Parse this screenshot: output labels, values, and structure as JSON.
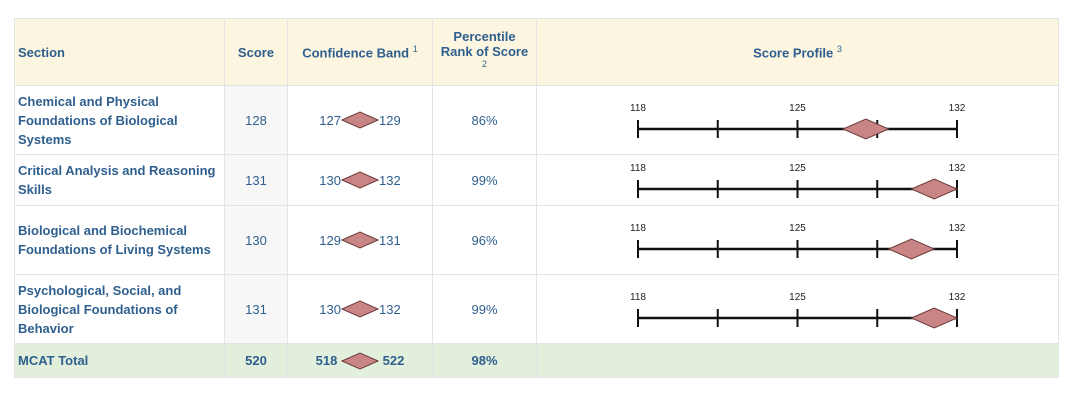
{
  "header": {
    "section": "Section",
    "score": "Score",
    "confidence": "Confidence Band",
    "confidence_note": "1",
    "percentile": "Percentile Rank of Score",
    "percentile_note": "2",
    "profile": "Score Profile",
    "profile_note": "3"
  },
  "axis": {
    "min": 118,
    "mid": 125,
    "max": 132,
    "labels": [
      "118",
      "125",
      "132"
    ]
  },
  "colors": {
    "diamond": "#c98585",
    "header_bg": "#fcf6e1",
    "total_bg": "#e1efdc",
    "text": "#2f5f8e"
  },
  "rows": [
    {
      "section": "Chemical and Physical Foundations of Biological Systems",
      "score": "128",
      "band_low": "127",
      "band_high": "129",
      "percentile": "86%"
    },
    {
      "section": "Critical Analysis and Reasoning Skills",
      "score": "131",
      "band_low": "130",
      "band_high": "132",
      "percentile": "99%"
    },
    {
      "section": "Biological and Biochemical Foundations of Living Systems",
      "score": "130",
      "band_low": "129",
      "band_high": "131",
      "percentile": "96%"
    },
    {
      "section": "Psychological, Social, and Biological Foundations of Behavior",
      "score": "131",
      "band_low": "130",
      "band_high": "132",
      "percentile": "99%"
    }
  ],
  "total": {
    "section": "MCAT Total",
    "score": "520",
    "band_low": "518",
    "band_high": "522",
    "percentile": "98%"
  }
}
